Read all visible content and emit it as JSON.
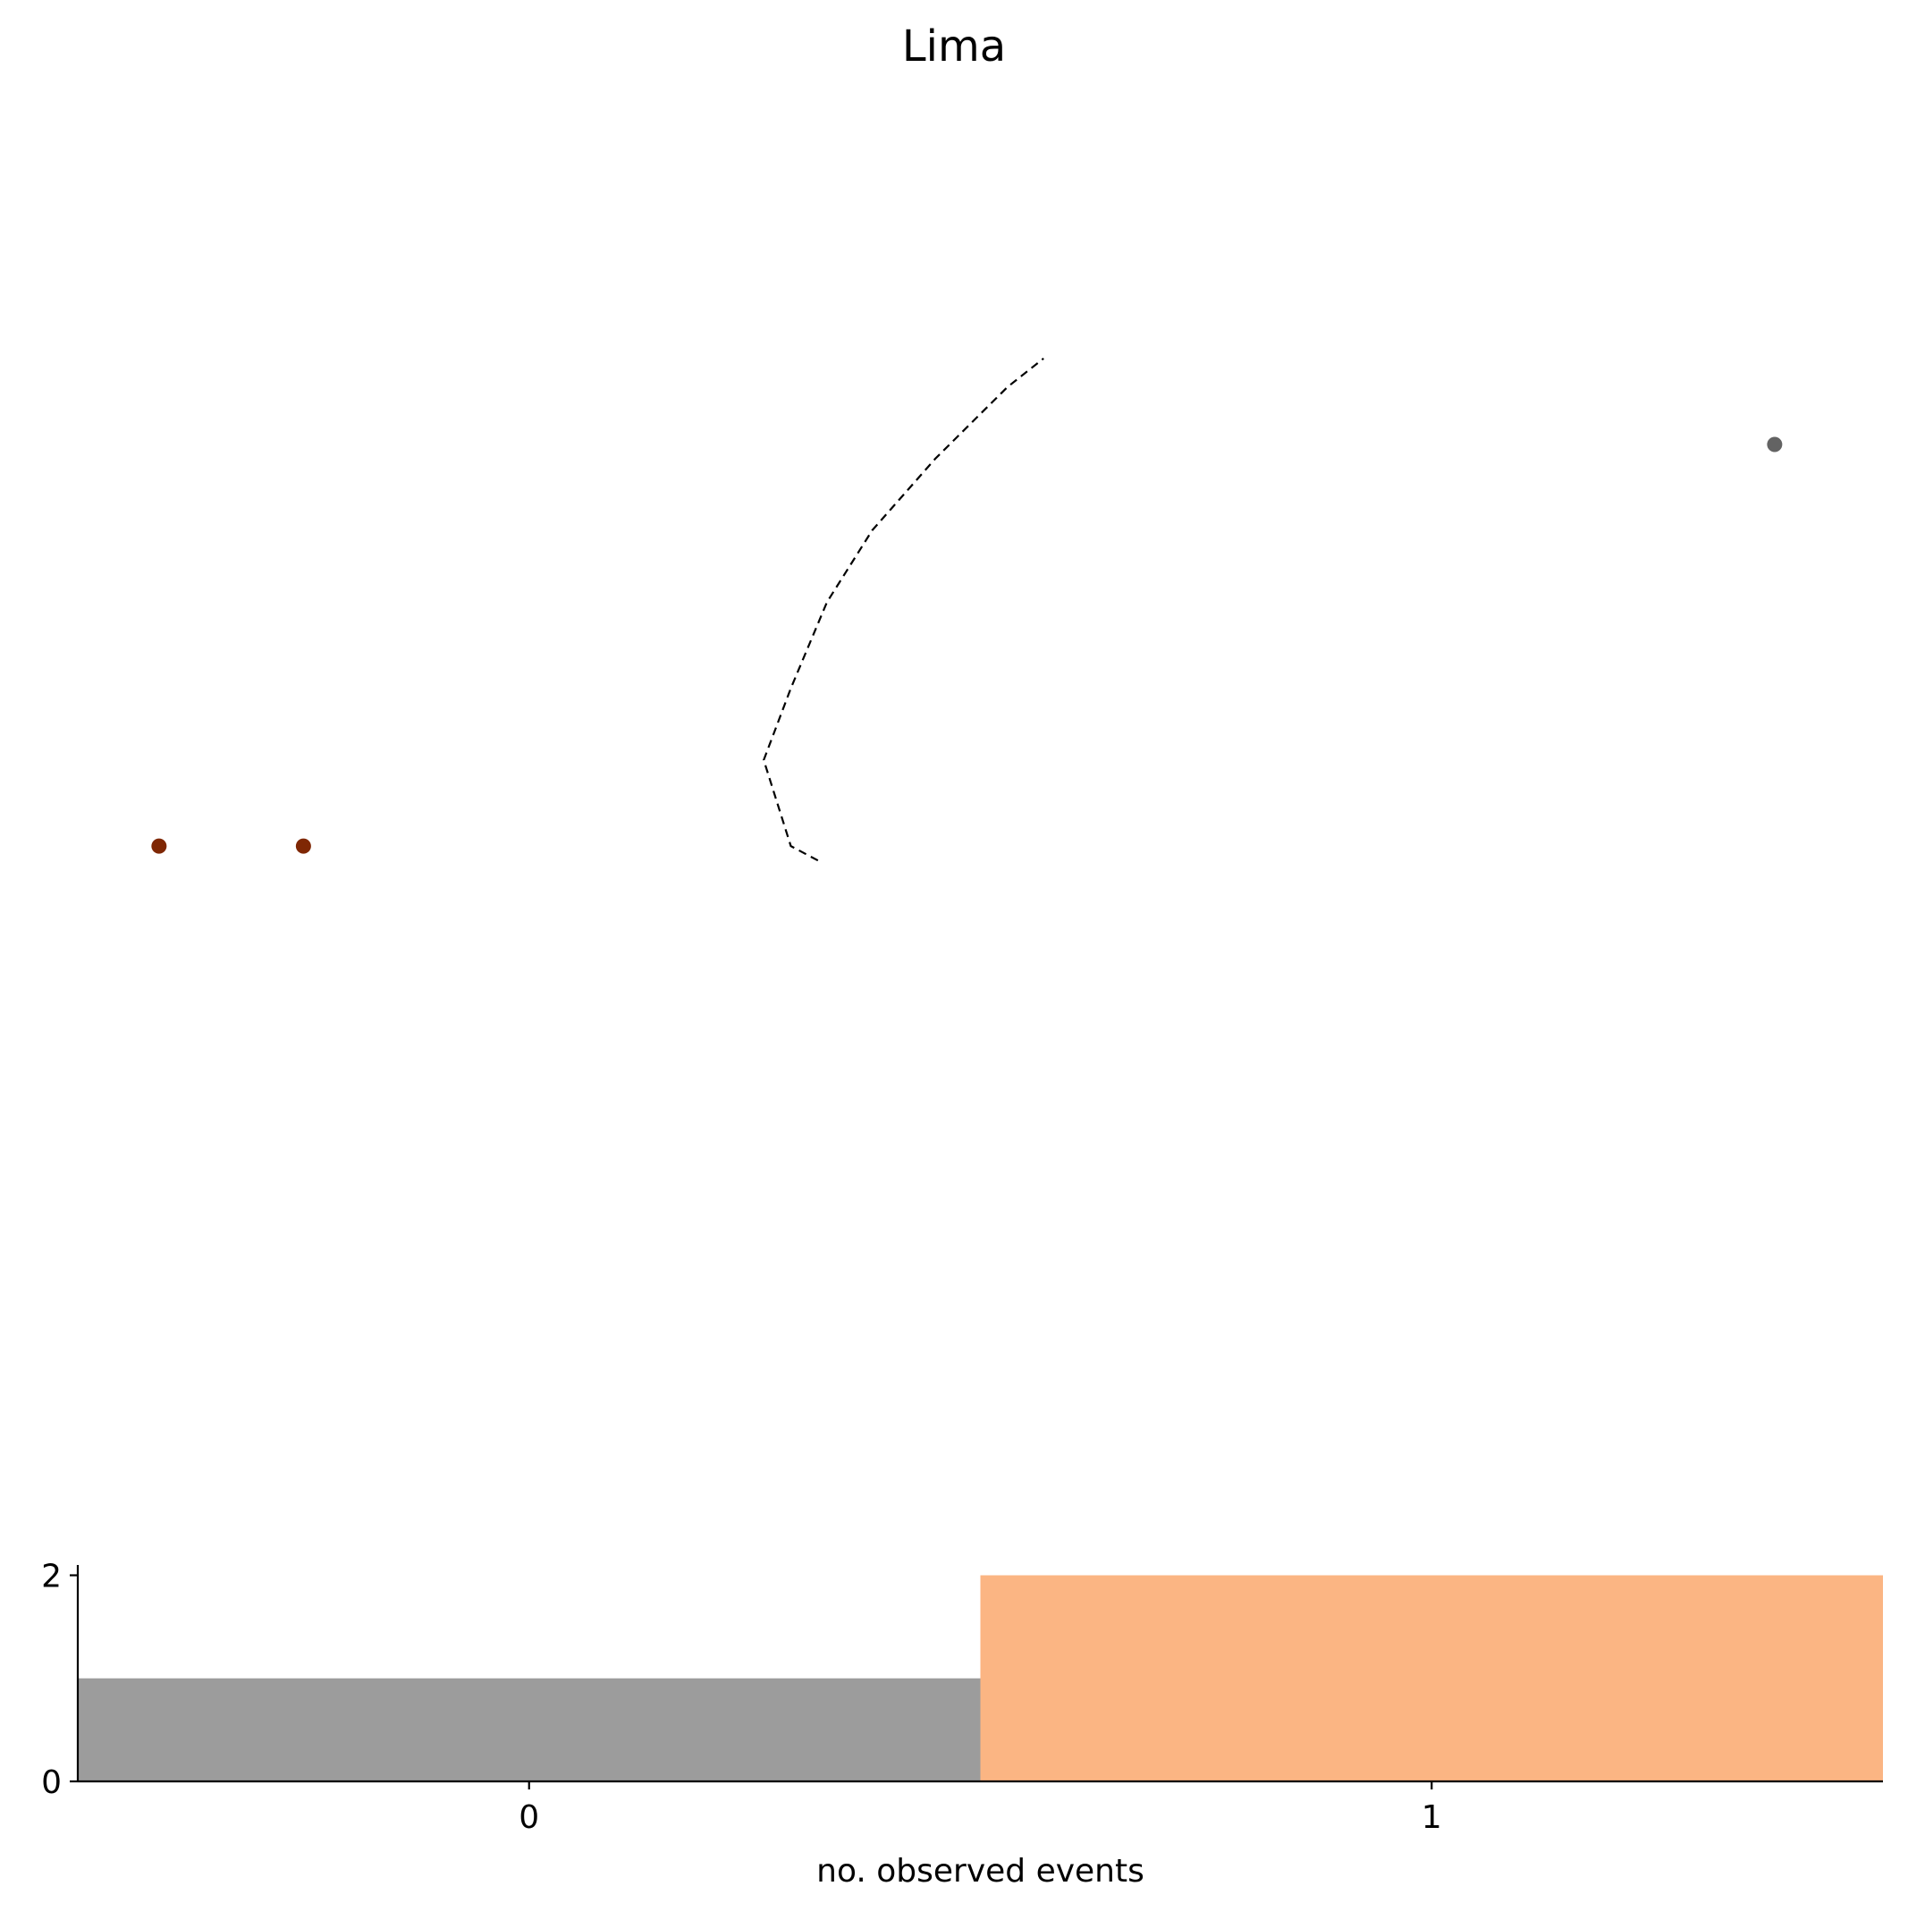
{
  "chart_data": [
    {
      "type": "scatter",
      "title": "Lima",
      "points": [
        {
          "x": 0.09,
          "y": 0.47,
          "color": "#7f2704"
        },
        {
          "x": 0.25,
          "y": 0.47,
          "color": "#7f2704"
        },
        {
          "x": 1.88,
          "y": 0.75,
          "color": "#636363"
        }
      ],
      "line": {
        "style": "dashed",
        "color": "#000000",
        "x": [
          0.82,
          0.79,
          0.76,
          0.79,
          0.83,
          0.88,
          0.95,
          1.03,
          1.07
        ],
        "y": [
          0.46,
          0.47,
          0.53,
          0.58,
          0.64,
          0.69,
          0.74,
          0.79,
          0.81
        ]
      },
      "xlim": [
        0,
        2
      ],
      "ylim": [
        0,
        1
      ],
      "axes_visible": false
    },
    {
      "type": "bar",
      "xlabel": "no. observed events",
      "ylabel": "",
      "categories": [
        "0",
        "1"
      ],
      "values": [
        1,
        2
      ],
      "colors": [
        "#9c9c9c",
        "#fbb583"
      ],
      "xticks": [
        "0",
        "1"
      ],
      "yticks": [
        "0",
        "2"
      ],
      "ylim": [
        0,
        2.1
      ],
      "grid": false
    }
  ]
}
